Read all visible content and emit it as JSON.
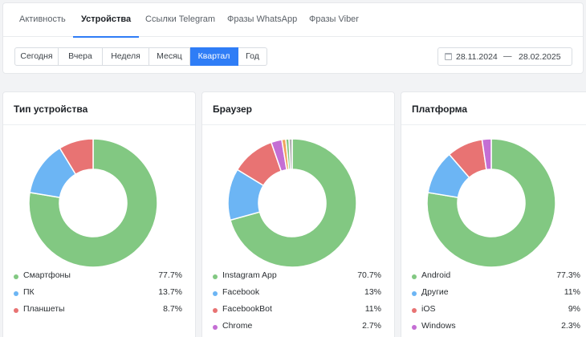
{
  "tabs": [
    {
      "label": "Активность",
      "active": false
    },
    {
      "label": "Устройства",
      "active": true
    },
    {
      "label": "Ссылки Telegram",
      "active": false
    },
    {
      "label": "Фразы WhatsApp",
      "active": false
    },
    {
      "label": "Фразы Viber",
      "active": false
    }
  ],
  "periods": [
    {
      "label": "Сегодня",
      "active": false
    },
    {
      "label": "Вчера",
      "active": false
    },
    {
      "label": "Неделя",
      "active": false
    },
    {
      "label": "Месяц",
      "active": false
    },
    {
      "label": "Квартал",
      "active": true
    },
    {
      "label": "Год",
      "active": false
    }
  ],
  "date_range": {
    "from": "28.11.2024",
    "separator": "—",
    "to": "28.02.2025",
    "icon": "calendar-icon"
  },
  "colors": {
    "accent": "#2f7df6",
    "green": "#82c882",
    "blue": "#6cb5f4",
    "red": "#e87373",
    "purple": "#c46ed4",
    "orange": "#f0a35e",
    "gray": "#b0b0b0"
  },
  "cards": [
    {
      "title": "Тип устройства",
      "items": [
        {
          "label": "Смартфоны",
          "display": "77.7%",
          "value": 77.7,
          "color": "#82c882"
        },
        {
          "label": "ПК",
          "display": "13.7%",
          "value": 13.7,
          "color": "#6cb5f4"
        },
        {
          "label": "Планшеты",
          "display": "8.7%",
          "value": 8.7,
          "color": "#e87373"
        }
      ]
    },
    {
      "title": "Браузер",
      "items": [
        {
          "label": "Instagram App",
          "display": "70.7%",
          "value": 70.7,
          "color": "#82c882"
        },
        {
          "label": "Facebook",
          "display": "13%",
          "value": 13,
          "color": "#6cb5f4"
        },
        {
          "label": "FacebookBot",
          "display": "11%",
          "value": 11,
          "color": "#e87373"
        },
        {
          "label": "Chrome",
          "display": "2.7%",
          "value": 2.7,
          "color": "#c46ed4"
        },
        {
          "label": "",
          "display": "",
          "value": 1,
          "color": "#f0a35e"
        },
        {
          "label": "",
          "display": "",
          "value": 0.8,
          "color": "#82c882"
        },
        {
          "label": "",
          "display": "",
          "value": 0.8,
          "color": "#b0b0b0"
        }
      ]
    },
    {
      "title": "Платформа",
      "items": [
        {
          "label": "Android",
          "display": "77.3%",
          "value": 77.3,
          "color": "#82c882"
        },
        {
          "label": "Другие",
          "display": "11%",
          "value": 11,
          "color": "#6cb5f4"
        },
        {
          "label": "iOS",
          "display": "9%",
          "value": 9,
          "color": "#e87373"
        },
        {
          "label": "Windows",
          "display": "2.3%",
          "value": 2.3,
          "color": "#c46ed4"
        }
      ]
    }
  ]
}
